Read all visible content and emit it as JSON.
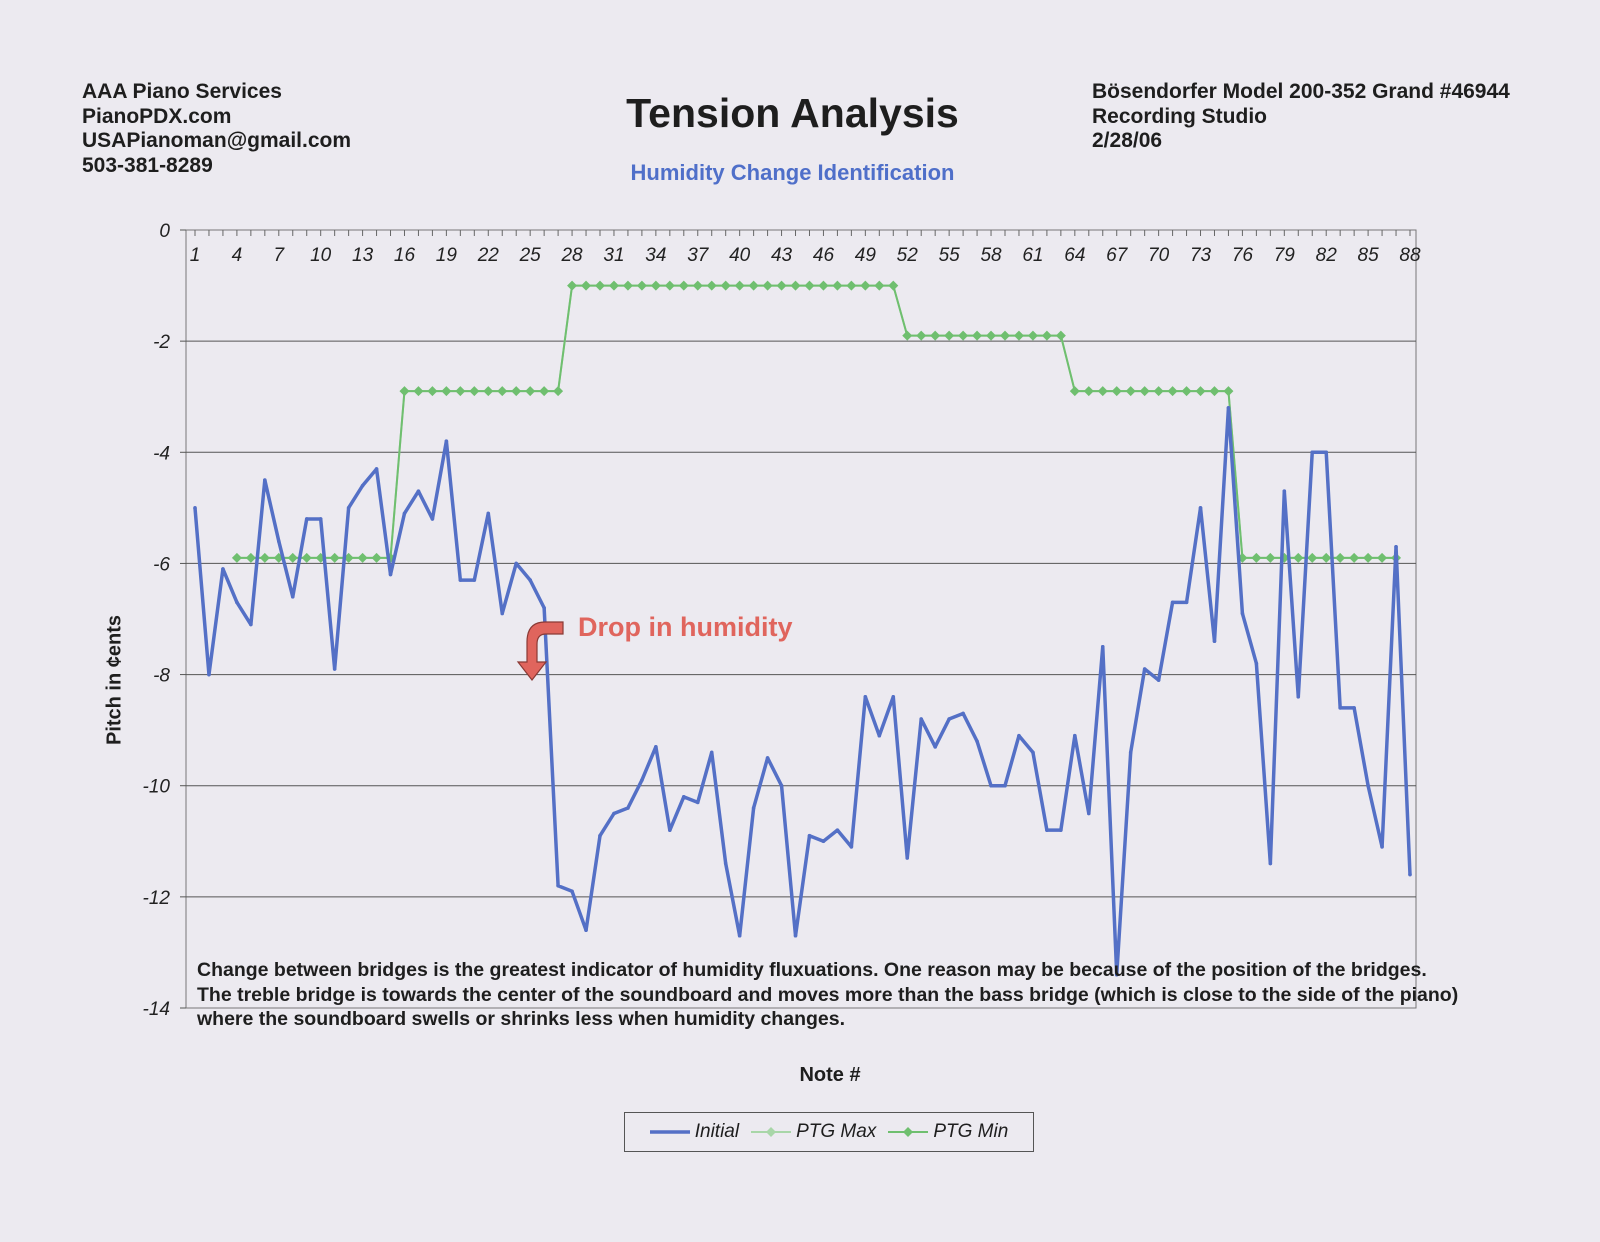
{
  "header": {
    "left_lines": [
      "AAA Piano Services",
      "PianoPDX.com",
      "USAPianoman@gmail.com",
      "503-381-8289"
    ],
    "right_lines": [
      "Bösendorfer Model 200-352 Grand #46944",
      "Recording Studio",
      "2/28/06"
    ],
    "title": "Tension Analysis",
    "subtitle": "Humidity Change Identification"
  },
  "annotation": "Drop in humidity",
  "note_lines": [
    "Change between bridges is the greatest indicator of humidity fluxuations. One reason may be because of the position of the bridges.",
    "The treble bridge is towards the center of the soundboard and moves more than the bass bridge (which is close to the side of the piano) where the soundboard swells or shrinks less when humidity changes."
  ],
  "colors": {
    "initial": "#5470c6",
    "ptg_max": "#a8d6a8",
    "ptg_min": "#6fbf6f",
    "annotation": "#e0655d",
    "subtitle": "#4f6fc9"
  },
  "chart_data": {
    "type": "line",
    "xlabel": "Note #",
    "ylabel": "Pitch in ¢ents",
    "ylim": [
      -14,
      0
    ],
    "yticks": [
      0,
      -2,
      -4,
      -6,
      -8,
      -10,
      -12,
      -14
    ],
    "xlim": [
      1,
      88
    ],
    "xticks": [
      1,
      4,
      7,
      10,
      13,
      16,
      19,
      22,
      25,
      28,
      31,
      34,
      37,
      40,
      43,
      46,
      49,
      52,
      55,
      58,
      61,
      64,
      67,
      70,
      73,
      76,
      79,
      82,
      85,
      88
    ],
    "grid": "horizontal",
    "legend_position": "bottom",
    "series": [
      {
        "name": "Initial",
        "values": [
          -5.0,
          -8.0,
          -6.1,
          -6.7,
          -7.1,
          -4.5,
          -5.6,
          -6.6,
          -5.2,
          -5.2,
          -7.9,
          -5.0,
          -4.6,
          -4.3,
          -6.2,
          -5.1,
          -4.7,
          -5.2,
          -3.8,
          -6.3,
          -6.3,
          -5.1,
          -6.9,
          -6.0,
          -6.3,
          -6.8,
          -11.8,
          -11.9,
          -12.6,
          -10.9,
          -10.5,
          -10.4,
          -9.9,
          -9.3,
          -10.8,
          -10.2,
          -10.3,
          -9.4,
          -11.4,
          -12.7,
          -10.4,
          -9.5,
          -10.0,
          -12.7,
          -10.9,
          -11.0,
          -10.8,
          -11.1,
          -8.4,
          -9.1,
          -8.4,
          -11.3,
          -8.8,
          -9.3,
          -8.8,
          -8.7,
          -9.2,
          -10.0,
          -10.0,
          -9.1,
          -9.4,
          -10.8,
          -10.8,
          -9.1,
          -10.5,
          -7.5,
          -13.4,
          -9.4,
          -7.9,
          -8.1,
          -6.7,
          -6.7,
          -5.0,
          -7.4,
          -3.2,
          -6.9,
          -7.8,
          -11.4,
          -4.7,
          -8.4,
          -4.0,
          -4.0,
          -8.6,
          -8.6,
          -10.0,
          -11.1,
          -5.7,
          -11.6
        ]
      },
      {
        "name": "PTG Max",
        "segments": [
          {
            "from": 4,
            "to": 15,
            "value": -5.9
          },
          {
            "from": 16,
            "to": 27,
            "value": -2.9
          },
          {
            "from": 28,
            "to": 51,
            "value": -1.0
          },
          {
            "from": 52,
            "to": 63,
            "value": -1.9
          },
          {
            "from": 64,
            "to": 75,
            "value": -2.9
          },
          {
            "from": 76,
            "to": 87,
            "value": -5.9
          }
        ]
      },
      {
        "name": "PTG Min",
        "segments": [
          {
            "from": 4,
            "to": 15,
            "value": -5.9
          },
          {
            "from": 16,
            "to": 27,
            "value": -2.9
          },
          {
            "from": 28,
            "to": 51,
            "value": -1.0
          },
          {
            "from": 52,
            "to": 63,
            "value": -1.9
          },
          {
            "from": 64,
            "to": 75,
            "value": -2.9
          },
          {
            "from": 76,
            "to": 87,
            "value": -5.9
          }
        ]
      }
    ]
  }
}
